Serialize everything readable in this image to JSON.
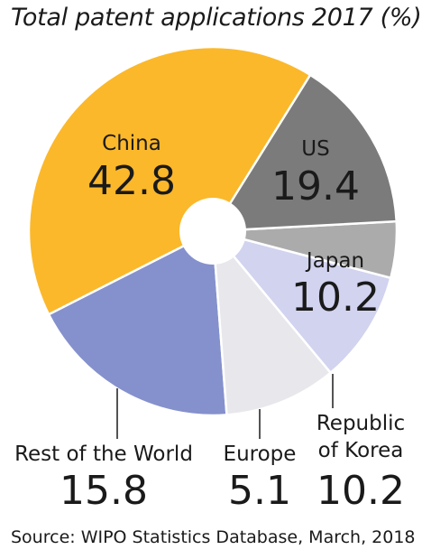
{
  "title": "Total patent applications 2017 (%)",
  "source": "Source: WIPO Statistics Database, March, 2018",
  "chart_data": {
    "type": "pie",
    "title": "Total patent applications 2017 (%)",
    "unit": "%",
    "legend": "none",
    "style": "donut",
    "slices": [
      {
        "label": "China",
        "value": 42.8,
        "value_label": "42.8",
        "color": "#fbb82a"
      },
      {
        "label": "US",
        "value": 19.4,
        "value_label": "19.4",
        "color": "#8591cc"
      },
      {
        "label": "Japan",
        "value": 10.2,
        "value_label": "10.2",
        "color": "#e8e8ec"
      },
      {
        "label": "Republic of Korea",
        "label_lines": [
          "Republic",
          "of Korea"
        ],
        "value": 10.2,
        "value_label": "10.2",
        "color": "#d1d3ef"
      },
      {
        "label": "Europe",
        "value": 5.1,
        "value_label": "5.1",
        "color": "#ababab"
      },
      {
        "label": "Rest of the World",
        "value": 15.8,
        "value_label": "15.8",
        "color": "#7b7b7b"
      }
    ]
  }
}
